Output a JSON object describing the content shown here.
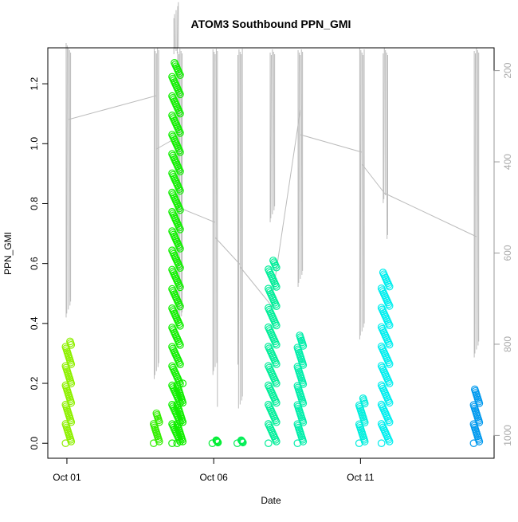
{
  "chart_data": {
    "type": "scatter",
    "title": "ATOM3 Southbound PPN_GMI",
    "xlabel": "Date",
    "ylabel": "PPN_GMI",
    "x_ticks": [
      "Oct 01",
      "Oct 06",
      "Oct 11"
    ],
    "x_tick_values_days": [
      1,
      6,
      11
    ],
    "xlim_days": [
      0.35,
      15.55
    ],
    "ylim": [
      -0.05,
      1.32
    ],
    "y_ticks": [
      0.0,
      0.2,
      0.4,
      0.6,
      0.8,
      1.0,
      1.2
    ],
    "y2_ticks": [
      200,
      400,
      600,
      800,
      1000
    ],
    "y2lim": [
      1050,
      150
    ],
    "grid": false,
    "legend": "none",
    "point_style": "open circles, color by date (hue)",
    "series": [
      {
        "day": 1.05,
        "min": 0.0,
        "max": 0.34,
        "color": "#8ef000"
      },
      {
        "day": 4.05,
        "min": 0.0,
        "max": 0.1,
        "color": "#33ee00"
      },
      {
        "day": 4.72,
        "min": 0.0,
        "max": 1.27,
        "color": "#11ee00"
      },
      {
        "day": 4.85,
        "min": 0.0,
        "max": 0.2,
        "color": "#11ee00"
      },
      {
        "day": 6.05,
        "min": 0.0,
        "max": 0.01,
        "color": "#00ee33"
      },
      {
        "day": 6.9,
        "min": 0.0,
        "max": 0.01,
        "color": "#00ee55"
      },
      {
        "day": 8.0,
        "min": 0.0,
        "max": 0.61,
        "color": "#00ee99"
      },
      {
        "day": 8.95,
        "min": 0.0,
        "max": 0.36,
        "color": "#00eeaa"
      },
      {
        "day": 11.05,
        "min": 0.0,
        "max": 0.15,
        "color": "#00eedd"
      },
      {
        "day": 11.85,
        "min": 0.0,
        "max": 0.57,
        "color": "#00eeee"
      },
      {
        "day": 14.95,
        "min": 0.0,
        "max": 0.18,
        "color": "#0099ee"
      }
    ],
    "altitude_trace_color": "#bbbbbb"
  }
}
